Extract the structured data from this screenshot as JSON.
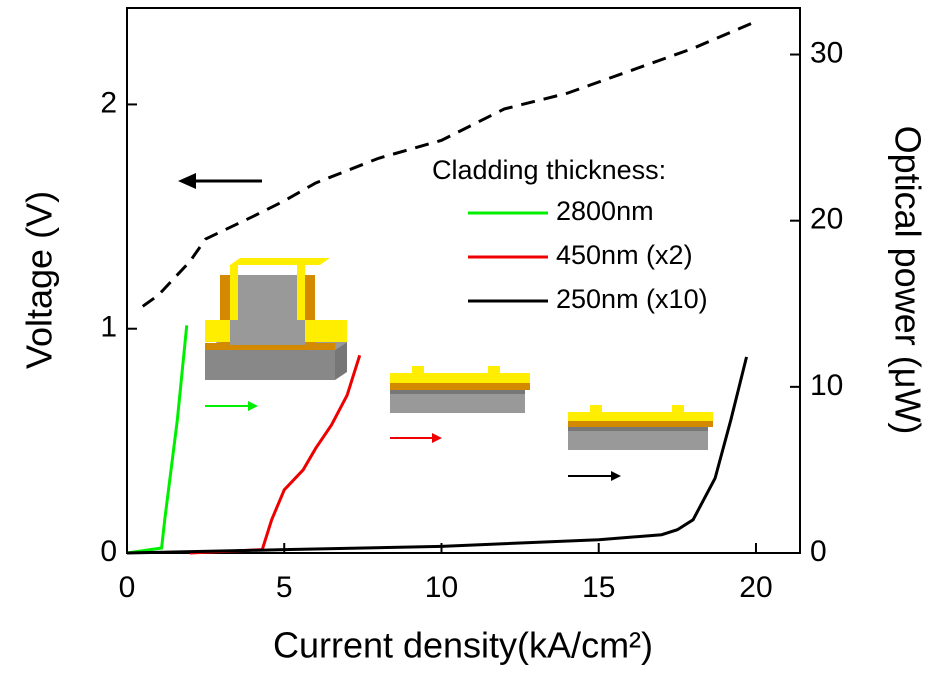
{
  "chart_data": {
    "type": "line",
    "x_label": "Current density(kA/cm²)",
    "y_label": "Voltage (V)",
    "y2_label": "Optical power (μW)",
    "legend_title": "Cladding thickness:",
    "xlim": [
      0,
      21.4
    ],
    "xticks": [
      0,
      5,
      10,
      15,
      20
    ],
    "ylim": [
      0,
      2.43
    ],
    "yticks": [
      0,
      1,
      2
    ],
    "y2lim": [
      0,
      32.8
    ],
    "y2ticks": [
      0,
      10,
      20,
      30
    ],
    "series": [
      {
        "color": "#000000",
        "dash": true,
        "axis": "y",
        "x": [
          0.5,
          1,
          2,
          2.5,
          4,
          5,
          6,
          8,
          10,
          12,
          14,
          15,
          16,
          18,
          20
        ],
        "values": [
          1.1,
          1.15,
          1.3,
          1.4,
          1.5,
          1.57,
          1.65,
          1.76,
          1.84,
          1.98,
          2.05,
          2.1,
          2.15,
          2.25,
          2.37
        ]
      },
      {
        "name": "2800nm",
        "color": "#00ee00",
        "axis": "y2",
        "x": [
          0,
          1.1,
          1.2,
          1.4,
          1.6,
          1.9
        ],
        "values": [
          0,
          0.3,
          2,
          5,
          8,
          13.7
        ]
      },
      {
        "name": "450nm (x2)",
        "color": "#ee0000",
        "axis": "y2",
        "x": [
          2,
          4.3,
          4.6,
          5,
          5.6,
          6,
          6.5,
          7,
          7.4
        ],
        "values": [
          0,
          0.2,
          2,
          3.8,
          5,
          6.3,
          7.7,
          9.5,
          11.9
        ]
      },
      {
        "name": "250nm (x10)",
        "color": "#000000",
        "axis": "y2",
        "x": [
          0,
          5,
          10,
          15,
          17,
          17.5,
          18,
          18.7,
          19.2,
          19.7
        ],
        "values": [
          0,
          0.2,
          0.4,
          0.8,
          1.1,
          1.4,
          2,
          4.5,
          8,
          11.8
        ]
      }
    ]
  }
}
